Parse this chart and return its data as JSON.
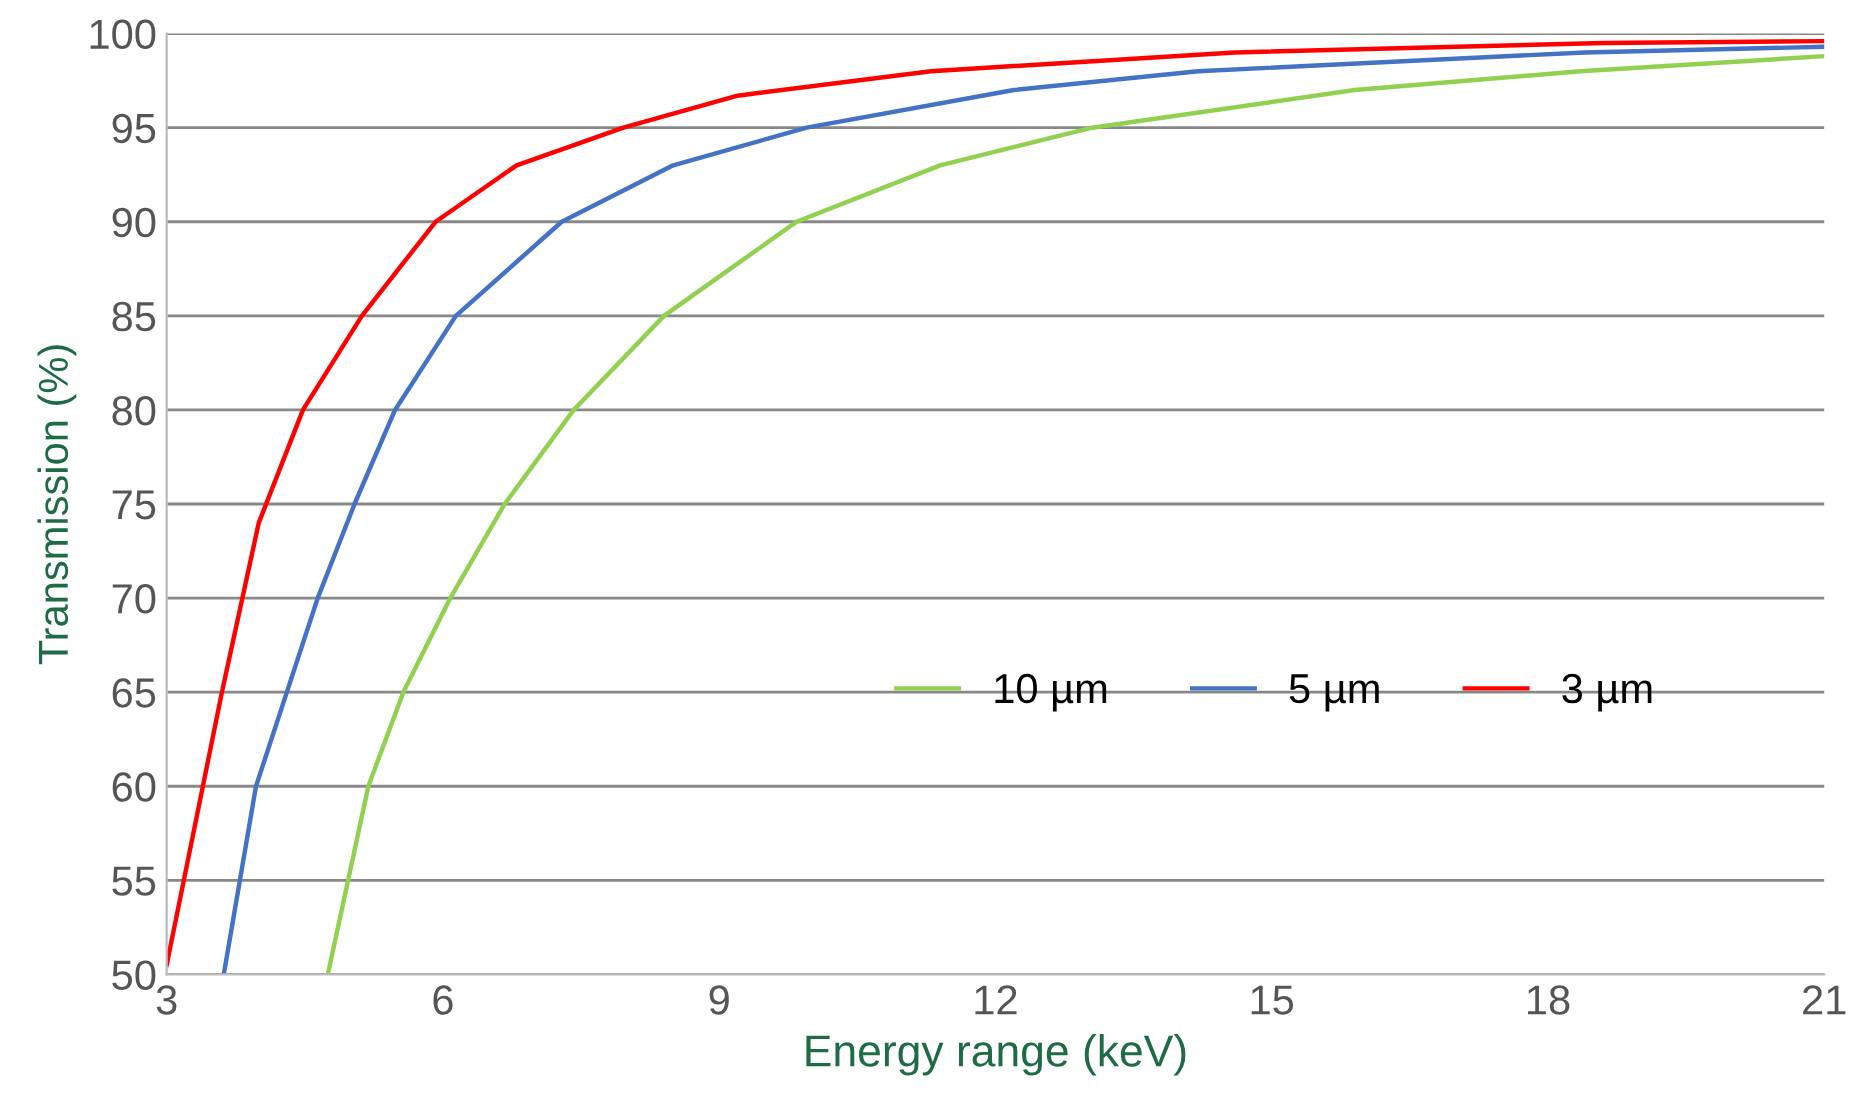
{
  "chart_data": {
    "type": "line",
    "xlabel": "Energy range (keV)",
    "ylabel": "Transmission (%)",
    "xlim": [
      3,
      21
    ],
    "xticks": [
      3,
      6,
      9,
      12,
      15,
      18,
      21
    ],
    "ylim": [
      50,
      100
    ],
    "yticks": [
      50,
      55,
      60,
      65,
      70,
      75,
      80,
      85,
      90,
      95,
      100
    ],
    "grid": "y",
    "legend": "right",
    "marker": "none",
    "line_style": "solid",
    "series": [
      {
        "name": "10 µm",
        "color": "#92d050",
        "x": [
          4.75,
          5.19,
          5.57,
          6.08,
          6.67,
          7.42,
          8.4,
          9.84,
          11.4,
          13.05,
          15.9,
          18.35,
          21
        ],
        "values": [
          50,
          60,
          65,
          70,
          75,
          80,
          85,
          90,
          93,
          95,
          97,
          98,
          98.8
        ]
      },
      {
        "name": "5 µm",
        "color": "#4472c4",
        "x": [
          3.62,
          3.97,
          4.64,
          5.04,
          5.48,
          6.14,
          7.29,
          8.5,
          9.95,
          12.2,
          14.2,
          18.4,
          21
        ],
        "values": [
          50,
          60,
          70,
          75,
          80,
          85,
          90,
          93,
          95,
          97,
          98,
          99,
          99.3
        ]
      },
      {
        "name": "3 µm",
        "color": "#ff0000",
        "x": [
          3.0,
          3.6,
          4.0,
          4.48,
          5.12,
          5.92,
          6.8,
          7.96,
          9.2,
          11.3,
          14.6,
          18.6,
          21
        ],
        "values": [
          50.5,
          65,
          74,
          80,
          85,
          90,
          93,
          95,
          96.7,
          98,
          99,
          99.5,
          99.6
        ]
      }
    ]
  }
}
